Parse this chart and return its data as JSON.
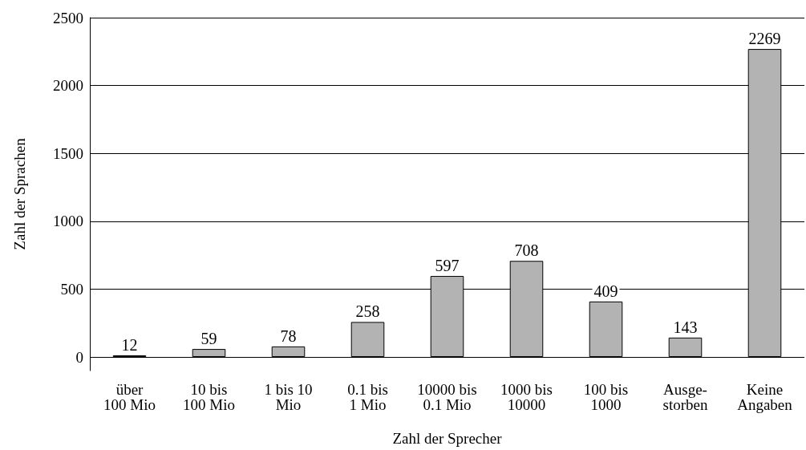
{
  "chart_data": {
    "type": "bar",
    "xlabel": "Zahl der Sprecher",
    "ylabel": "Zahl der Sprachen",
    "categories": [
      "über\n100 Mio",
      "10 bis\n100 Mio",
      "1 bis 10\nMio",
      "0.1 bis\n1 Mio",
      "10000 bis\n0.1 Mio",
      "1000 bis\n10000",
      "100 bis\n1000",
      "Ausge-\nstorben",
      "Keine\nAngaben"
    ],
    "values": [
      12,
      59,
      78,
      258,
      597,
      708,
      409,
      143,
      2269
    ],
    "color": "#b3b3b3",
    "ylim": [
      -100,
      2500
    ],
    "yticks": [
      0,
      500,
      1000,
      1500,
      2000,
      2500
    ],
    "grid": "y",
    "data_labels": true
  }
}
